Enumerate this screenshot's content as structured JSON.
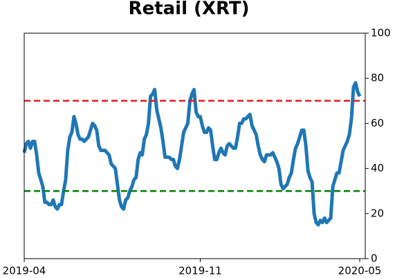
{
  "chart_data": {
    "type": "line",
    "title": "Retail (XRT)",
    "categories": [
      "2019-04",
      null,
      null,
      null,
      null,
      null,
      null,
      null,
      null,
      null,
      null,
      null,
      null,
      null,
      null,
      null,
      null,
      null,
      null,
      null,
      null,
      null,
      null,
      null,
      null,
      null,
      null,
      null,
      null,
      null,
      null,
      null,
      null,
      null,
      null,
      null,
      null,
      null,
      null,
      null,
      null,
      null,
      null,
      null,
      null,
      null,
      null,
      null,
      null,
      null,
      null,
      null,
      null,
      null,
      null,
      null,
      null,
      null,
      null,
      null,
      null,
      null,
      null,
      null,
      null,
      null,
      null,
      null,
      null,
      null,
      null,
      null,
      null,
      null,
      null,
      null,
      null,
      null,
      null,
      null,
      null,
      null,
      null,
      null,
      null,
      "2019-11",
      null,
      null,
      null,
      null,
      null,
      null,
      null,
      null,
      null,
      null,
      null,
      null,
      null,
      null,
      null,
      null,
      null,
      null,
      null,
      null,
      null,
      null,
      null,
      null,
      null,
      null,
      null,
      null,
      null,
      null,
      null,
      null,
      null,
      null,
      null,
      null,
      null,
      null,
      null,
      null,
      null,
      null,
      null,
      null,
      null,
      null,
      null,
      null,
      null,
      null,
      null,
      null,
      null,
      null,
      null,
      null,
      null,
      null,
      null,
      null,
      null,
      null,
      null,
      null,
      null,
      null,
      null,
      null,
      null,
      null,
      null,
      null,
      null,
      null,
      null,
      null,
      "2020-05"
    ],
    "values": [
      47,
      51,
      52,
      49,
      52,
      52,
      46,
      38,
      35,
      32,
      25,
      25,
      24,
      24,
      26,
      23,
      22,
      24,
      24,
      30,
      35,
      48,
      54,
      56,
      63,
      60,
      55,
      53,
      53,
      52,
      53,
      54,
      57,
      60,
      59,
      57,
      50,
      48,
      48,
      48,
      47,
      46,
      42,
      41,
      40,
      33,
      26,
      23,
      22,
      26,
      27,
      30,
      32,
      35,
      36,
      44,
      47,
      46,
      53,
      55,
      60,
      72,
      73,
      75,
      66,
      62,
      58,
      52,
      45,
      45,
      45,
      44,
      44,
      41,
      40,
      44,
      50,
      56,
      58,
      60,
      70,
      73,
      75,
      65,
      63,
      63,
      59,
      56,
      56,
      58,
      57,
      50,
      44,
      44,
      47,
      49,
      47,
      46,
      50,
      51,
      50,
      49,
      49,
      54,
      60,
      60,
      62,
      62,
      63,
      64,
      59,
      57,
      55,
      50,
      46,
      44,
      43,
      46,
      46,
      46,
      47,
      45,
      43,
      40,
      33,
      31,
      32,
      33,
      36,
      38,
      44,
      49,
      51,
      54,
      57,
      57,
      50,
      39,
      36,
      34,
      20,
      16,
      15,
      17,
      16,
      18,
      16,
      17,
      18,
      32,
      35,
      38,
      38,
      43,
      48,
      50,
      52,
      55,
      62,
      76,
      78,
      74,
      72
    ],
    "color": "#1f77b4",
    "ylim": [
      0,
      100
    ],
    "yticks": [
      0,
      20,
      40,
      60,
      80,
      100
    ],
    "hlines": [
      {
        "value": 70,
        "color": "#e41a1c"
      },
      {
        "value": 30,
        "color": "#008000"
      }
    ]
  }
}
